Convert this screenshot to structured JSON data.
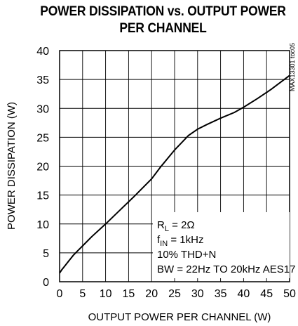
{
  "chart_data": {
    "type": "line",
    "title_line1": "POWER DISSIPATION vs. OUTPUT POWER",
    "title_line2": "PER CHANNEL",
    "xlabel": "OUTPUT POWER PER CHANNEL (W)",
    "ylabel": "POWER DISSIPATION (W)",
    "xlim": [
      0,
      50
    ],
    "ylim": [
      0,
      40
    ],
    "xticks": [
      0,
      5,
      10,
      15,
      20,
      25,
      30,
      35,
      40,
      45,
      50
    ],
    "yticks": [
      0,
      5,
      10,
      15,
      20,
      25,
      30,
      35,
      40
    ],
    "grid": true,
    "series": [
      {
        "x": [
          0,
          0.5,
          1,
          2,
          3,
          4,
          5,
          7,
          10,
          13,
          16,
          20,
          22,
          25,
          28,
          30,
          32,
          35,
          38,
          40,
          43,
          46,
          50
        ],
        "y": [
          1.5,
          2.1,
          2.6,
          3.6,
          4.6,
          5.4,
          6.2,
          7.8,
          10.0,
          12.3,
          14.6,
          17.8,
          19.9,
          22.8,
          25.3,
          26.4,
          27.2,
          28.3,
          29.3,
          30.2,
          31.7,
          33.3,
          35.7
        ]
      }
    ],
    "annotations": {
      "rl_main": "R",
      "rl_sub": "L",
      "rl_value": " = 2Ω",
      "fin_main": "f",
      "fin_sub": "IN",
      "fin_value": " = 1kHz",
      "thd": "10% THD+N",
      "bw": "BW = 22Hz TO 20kHz AES17"
    },
    "side_id": "MAX13301 toc05"
  },
  "colors": {
    "line": "#000000",
    "grid": "#000000",
    "background": "#ffffff"
  }
}
